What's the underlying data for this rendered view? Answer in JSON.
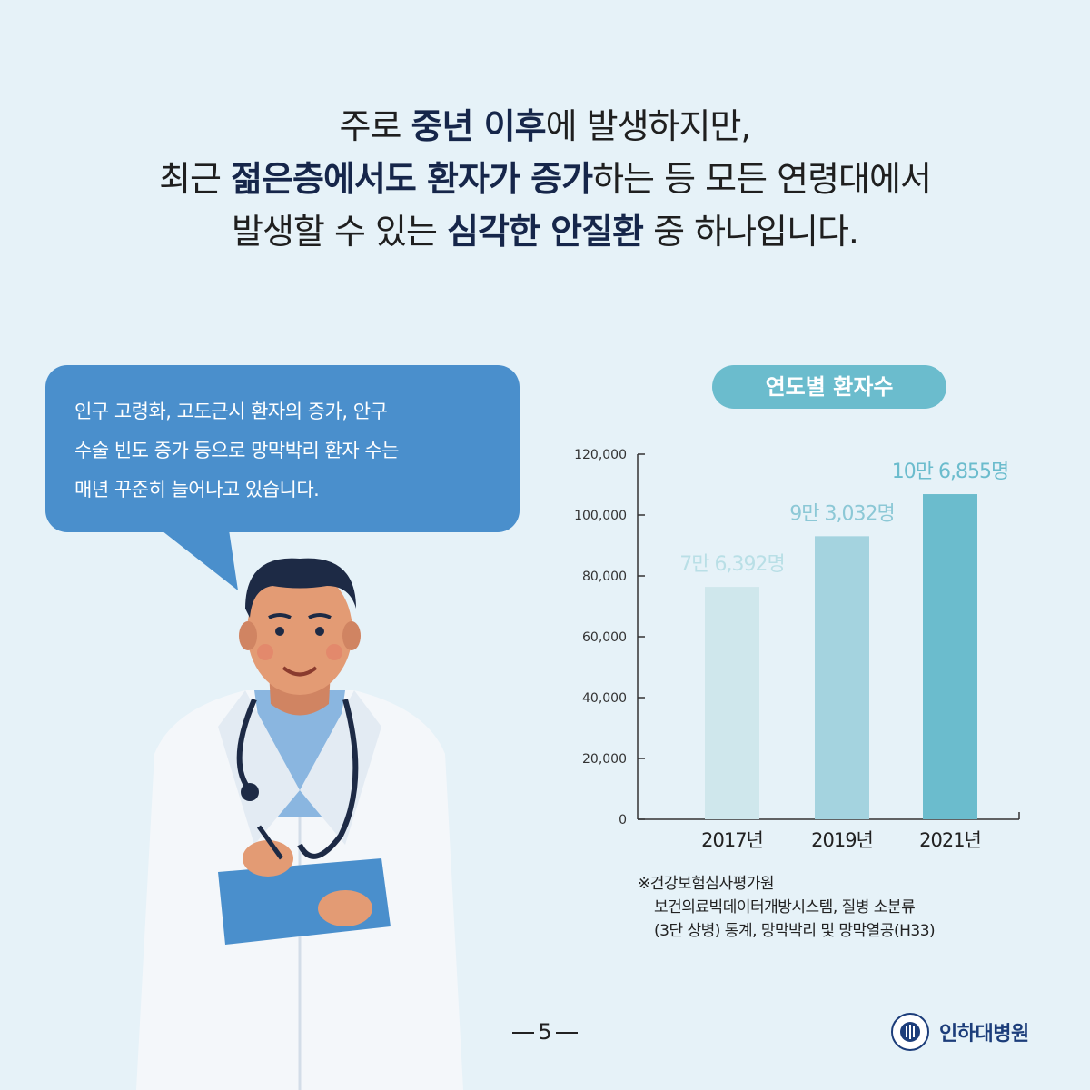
{
  "headline": {
    "line1": [
      {
        "t": "주로 ",
        "b": false
      },
      {
        "t": "중년 이후",
        "b": true
      },
      {
        "t": "에 발생하지만,",
        "b": false
      }
    ],
    "line2": [
      {
        "t": "최근 ",
        "b": false
      },
      {
        "t": "젊은층에서도 환자가 증가",
        "b": true
      },
      {
        "t": "하는 등 모든 연령대에서",
        "b": false
      }
    ],
    "line3": [
      {
        "t": "발생할 수 있는 ",
        "b": false
      },
      {
        "t": "심각한 안질환",
        "b": true
      },
      {
        "t": " 중 하나입니다.",
        "b": false
      }
    ]
  },
  "bubble": {
    "line1": "인구 고령화, 고도근시 환자의 증가, 안구",
    "line2": "수술 빈도 증가 등으로 망막박리 환자 수는",
    "line3": "매년 꾸준히 늘어나고 있습니다."
  },
  "chart_data": {
    "type": "bar",
    "title": "연도별 환자수",
    "categories": [
      "2017년",
      "2019년",
      "2021년"
    ],
    "values": [
      76392,
      93032,
      106855
    ],
    "data_labels": [
      "7만 6,392명",
      "9만 3,032명",
      "10만 6,855명"
    ],
    "bar_colors": [
      "#cfe7ec",
      "#a4d3df",
      "#6bbccd"
    ],
    "label_colors": [
      "#b9dfe6",
      "#8cc8d6",
      "#6bbccd"
    ],
    "ylim": [
      0,
      120000
    ],
    "yticks": [
      0,
      20000,
      40000,
      60000,
      80000,
      100000,
      120000
    ],
    "ytick_labels": [
      "0",
      "20,000",
      "40,000",
      "60,000",
      "80,000",
      "100,000",
      "120,000"
    ],
    "grid": false
  },
  "source": {
    "line1": "※건강보험심사평가원",
    "line2": "보건의료빅데이터개방시스템, 질병 소분류",
    "line3": "(3단 상병) 통계, 망막박리 및 망막열공(H33)"
  },
  "page_number": "5",
  "logo": {
    "name": "인하대병원",
    "seal": "인하대병원 INHA UNIV. HOSPITAL",
    "color": "#1c3d7a"
  }
}
